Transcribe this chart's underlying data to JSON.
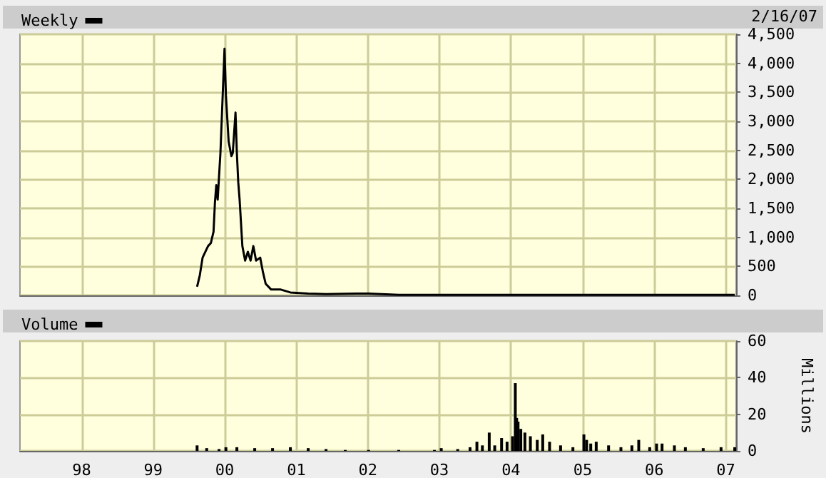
{
  "chart_data": [
    {
      "type": "line",
      "annotations": [
        "2/16/07"
      ],
      "legend": "top left",
      "grid": true,
      "tick_labels": "y",
      "marker": "none",
      "line_style": "solid",
      "x": [
        "1999-08-13",
        "1999-08-27",
        "1999-09-10",
        "1999-10-08",
        "1999-10-22",
        "1999-11-05",
        "1999-11-12",
        "1999-11-19",
        "1999-11-26",
        "1999-12-10",
        "1999-12-31",
        "2000-01-07",
        "2000-01-14",
        "2000-01-21",
        "2000-02-04",
        "2000-02-11",
        "2000-02-25",
        "2000-03-03",
        "2000-03-10",
        "2000-03-17",
        "2000-03-31",
        "2000-04-14",
        "2000-04-28",
        "2000-05-12",
        "2000-05-26",
        "2000-06-09",
        "2000-06-30",
        "2000-07-14",
        "2000-07-28",
        "2000-08-25",
        "2000-10-13",
        "2000-12-01",
        "2001-03-02",
        "2001-06-01",
        "2001-11-02",
        "2002-01-04",
        "2002-06-07",
        "2003-01-03",
        "2004-01-02",
        "2005-01-07",
        "2006-01-06",
        "2007-02-16"
      ],
      "series": [
        {
          "name": "Weekly",
          "color": "#000000",
          "values": [
            150,
            350,
            650,
            850,
            900,
            1100,
            1600,
            1900,
            1650,
            2450,
            4250,
            3450,
            3050,
            2650,
            2400,
            2450,
            3150,
            2450,
            1950,
            1650,
            850,
            600,
            750,
            600,
            850,
            600,
            650,
            400,
            200,
            100,
            100,
            50,
            30,
            20,
            30,
            30,
            10,
            10,
            10,
            10,
            10,
            10
          ]
        }
      ],
      "xlim": [
        "1997-02-20",
        "2007-02-23"
      ],
      "xticks": [
        {
          "value": "1998-01-01",
          "label": null
        },
        {
          "value": "1999-01-01",
          "label": null
        },
        {
          "value": "2000-01-01",
          "label": null
        },
        {
          "value": "2001-01-01",
          "label": null
        },
        {
          "value": "2002-01-01",
          "label": null
        },
        {
          "value": "2003-01-01",
          "label": null
        },
        {
          "value": "2004-01-01",
          "label": null
        },
        {
          "value": "2005-01-01",
          "label": null
        },
        {
          "value": "2006-01-01",
          "label": null
        },
        {
          "value": "2007-01-01",
          "label": null
        }
      ],
      "ylim": [
        0,
        4500
      ],
      "yticks": [
        0,
        500,
        {
          "value": 1000,
          "label": "1,000"
        },
        {
          "value": 1500,
          "label": "1,500"
        },
        {
          "value": 2000,
          "label": "2,000"
        },
        {
          "value": 2500,
          "label": "2,500"
        },
        {
          "value": 3000,
          "label": "3,000"
        },
        {
          "value": 3500,
          "label": "3,500"
        },
        {
          "value": 4000,
          "label": "4,000"
        },
        {
          "value": 4500,
          "label": "4,500"
        }
      ]
    },
    {
      "type": "bar",
      "ylabel": "Millions",
      "legend": "top left",
      "grid": true,
      "x": [
        "1999-08-13",
        "1999-10-01",
        "1999-12-03",
        "2000-01-07",
        "2000-03-03",
        "2000-06-02",
        "2000-09-01",
        "2000-12-01",
        "2001-03-02",
        "2001-06-01",
        "2001-09-07",
        "2002-01-04",
        "2002-06-07",
        "2002-12-06",
        "2003-01-10",
        "2003-04-04",
        "2003-06-06",
        "2003-07-11",
        "2003-08-08",
        "2003-09-12",
        "2003-10-10",
        "2003-11-14",
        "2003-12-12",
        "2004-01-09",
        "2004-01-23",
        "2004-01-30",
        "2004-02-06",
        "2004-02-20",
        "2004-03-12",
        "2004-04-09",
        "2004-05-14",
        "2004-06-11",
        "2004-07-16",
        "2004-09-10",
        "2004-11-12",
        "2005-01-07",
        "2005-01-21",
        "2005-02-11",
        "2005-03-11",
        "2005-05-13",
        "2005-07-15",
        "2005-09-09",
        "2005-10-14",
        "2005-12-09",
        "2006-01-13",
        "2006-02-10",
        "2006-04-14",
        "2006-06-09",
        "2006-09-08",
        "2006-12-08",
        "2007-02-16"
      ],
      "series": [
        {
          "name": "Volume",
          "color": "#000000",
          "values": [
            3,
            1.5,
            1,
            2,
            2,
            1.5,
            1.5,
            2,
            1.5,
            1,
            0.5,
            0.5,
            0.5,
            0.5,
            1.5,
            1,
            2,
            5,
            3,
            10,
            3,
            7,
            5,
            8,
            37,
            18,
            16,
            12,
            10,
            8,
            6,
            9,
            5,
            3,
            2,
            9,
            6,
            4,
            5,
            3,
            2,
            3,
            6,
            2,
            4,
            4,
            3,
            2,
            1.5,
            2,
            2
          ]
        }
      ],
      "xlim": [
        "1997-02-20",
        "2007-02-23"
      ],
      "xticks": [
        {
          "value": "1998-01-01",
          "label": "98"
        },
        {
          "value": "1999-01-01",
          "label": "99"
        },
        {
          "value": "2000-01-01",
          "label": "00"
        },
        {
          "value": "2001-01-01",
          "label": "01"
        },
        {
          "value": "2002-01-01",
          "label": "02"
        },
        {
          "value": "2003-01-01",
          "label": "03"
        },
        {
          "value": "2004-01-01",
          "label": "04"
        },
        {
          "value": "2005-01-01",
          "label": "05"
        },
        {
          "value": "2006-01-01",
          "label": "06"
        },
        {
          "value": "2007-01-01",
          "label": "07"
        }
      ],
      "ylim": [
        0,
        60
      ],
      "yticks": [
        0,
        20,
        40,
        60
      ]
    }
  ]
}
